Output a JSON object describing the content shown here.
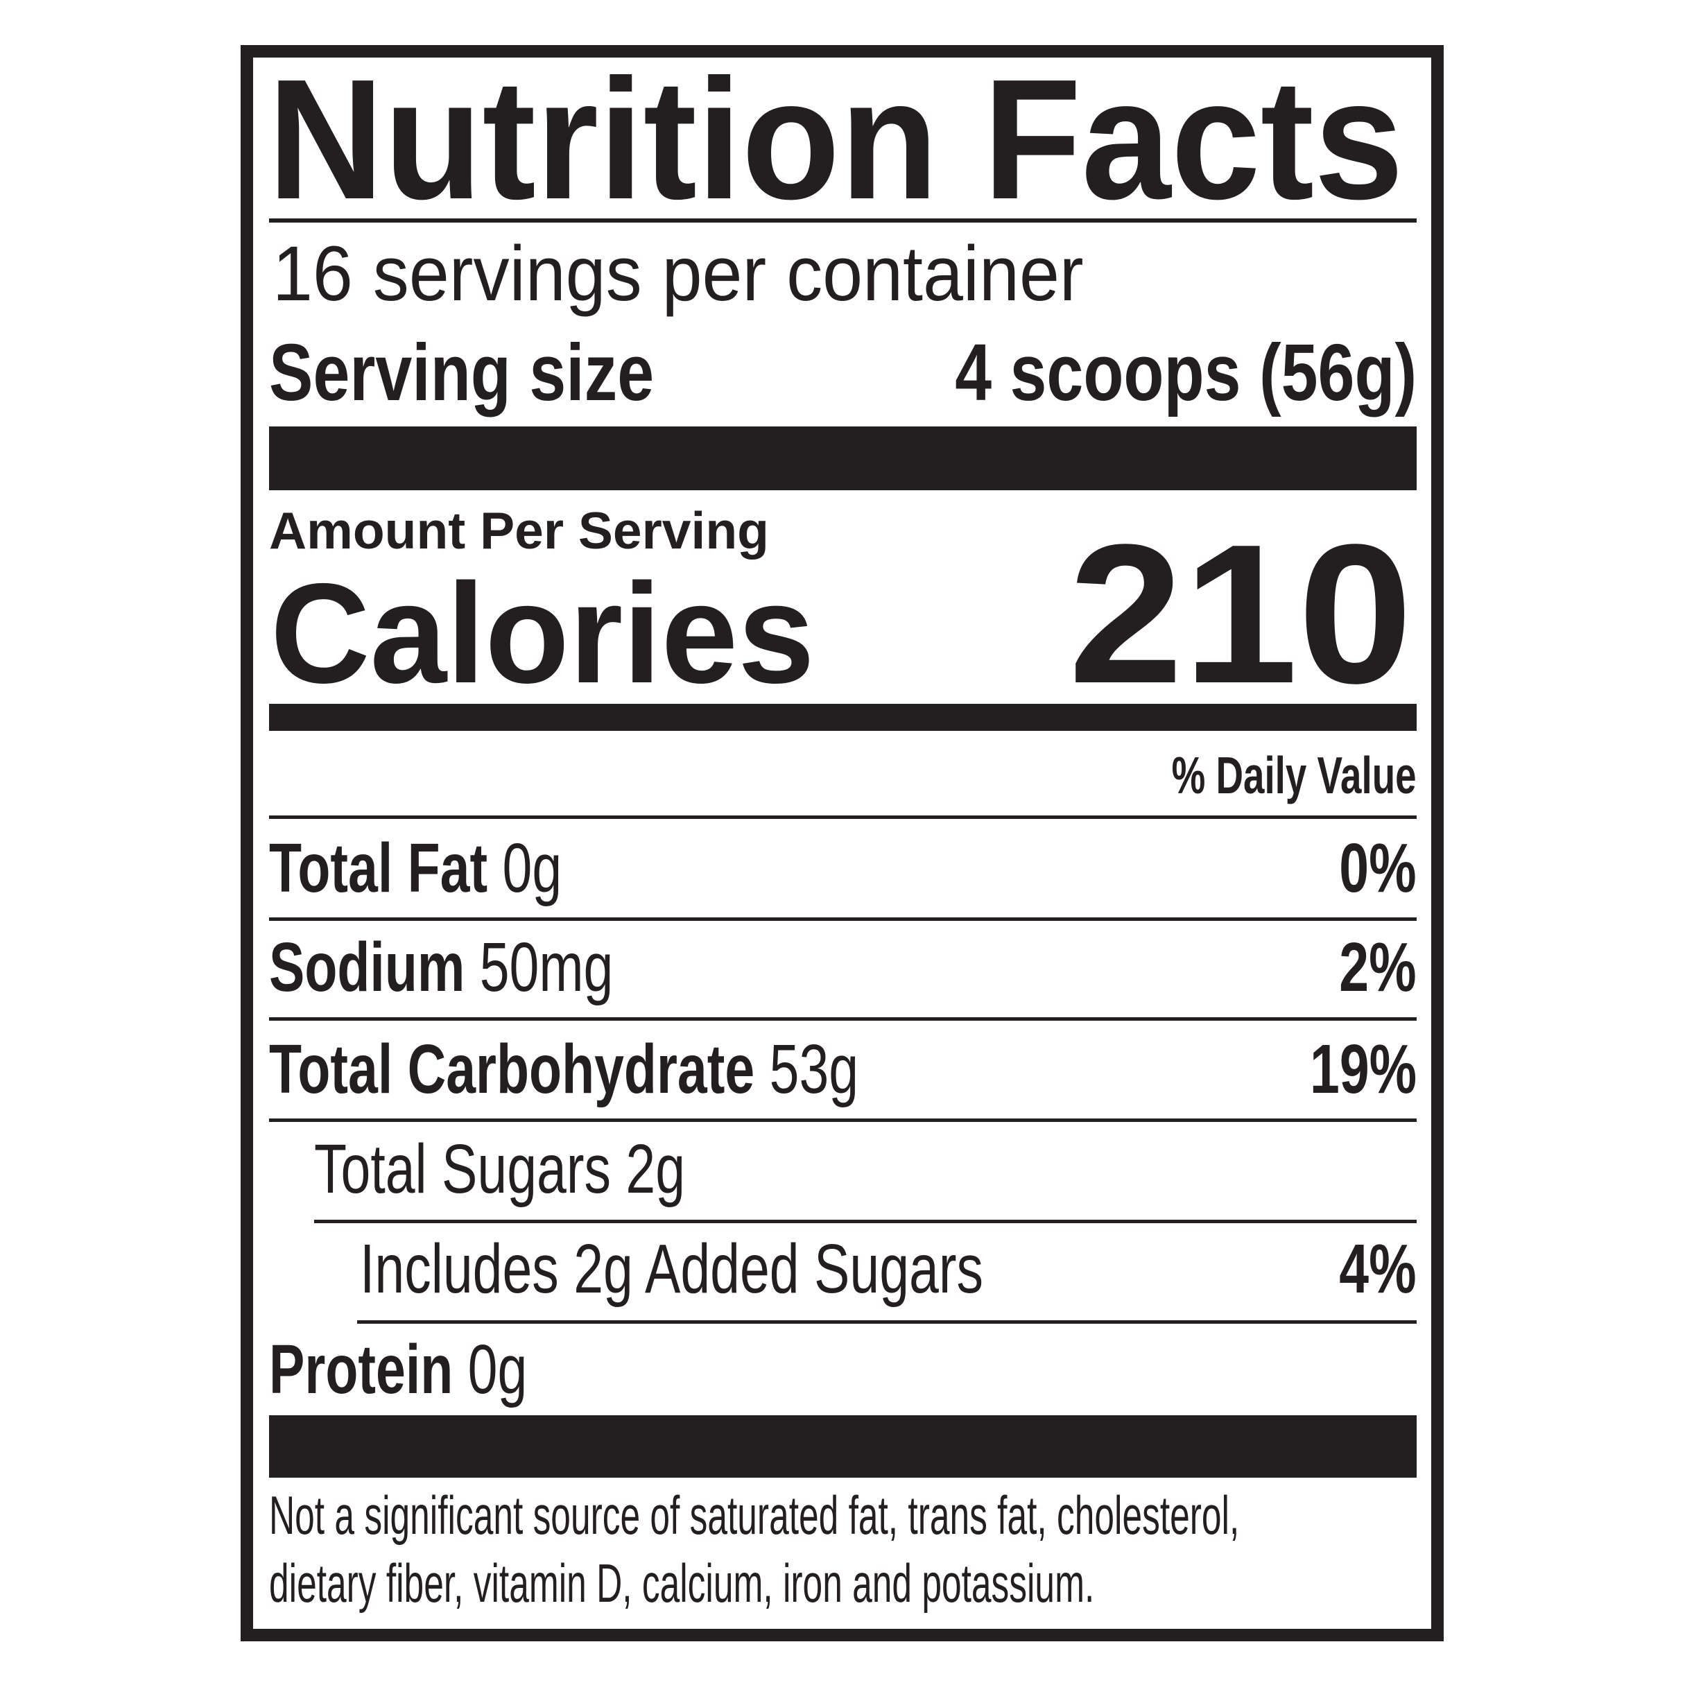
{
  "label": {
    "title": "Nutrition Facts",
    "servings_per_container": "16 servings per container",
    "serving_size_label": "Serving size",
    "serving_size_value": "4 scoops (56g)",
    "amount_per_serving": "Amount Per Serving",
    "calories_label": "Calories",
    "calories_value": "210",
    "daily_value_header": "% Daily Value",
    "nutrients": [
      {
        "name": "Total Fat",
        "amount": "0g",
        "dv": "0%"
      },
      {
        "name": "Sodium",
        "amount": "50mg",
        "dv": "2%"
      },
      {
        "name": "Total Carbohydrate",
        "amount": "53g",
        "dv": "19%"
      },
      {
        "name": "Total Sugars 2g",
        "amount": "",
        "dv": ""
      },
      {
        "name": "Includes 2g Added Sugars",
        "amount": "",
        "dv": "4%"
      },
      {
        "name": "Protein",
        "amount": "0g",
        "dv": ""
      }
    ],
    "footnote_line1": "Not a significant source of saturated fat, trans fat, cholesterol,",
    "footnote_line2": "dietary fiber, vitamin D, calcium, iron and potassium."
  },
  "colors": {
    "ink": "#231f20",
    "background": "#ffffff"
  }
}
